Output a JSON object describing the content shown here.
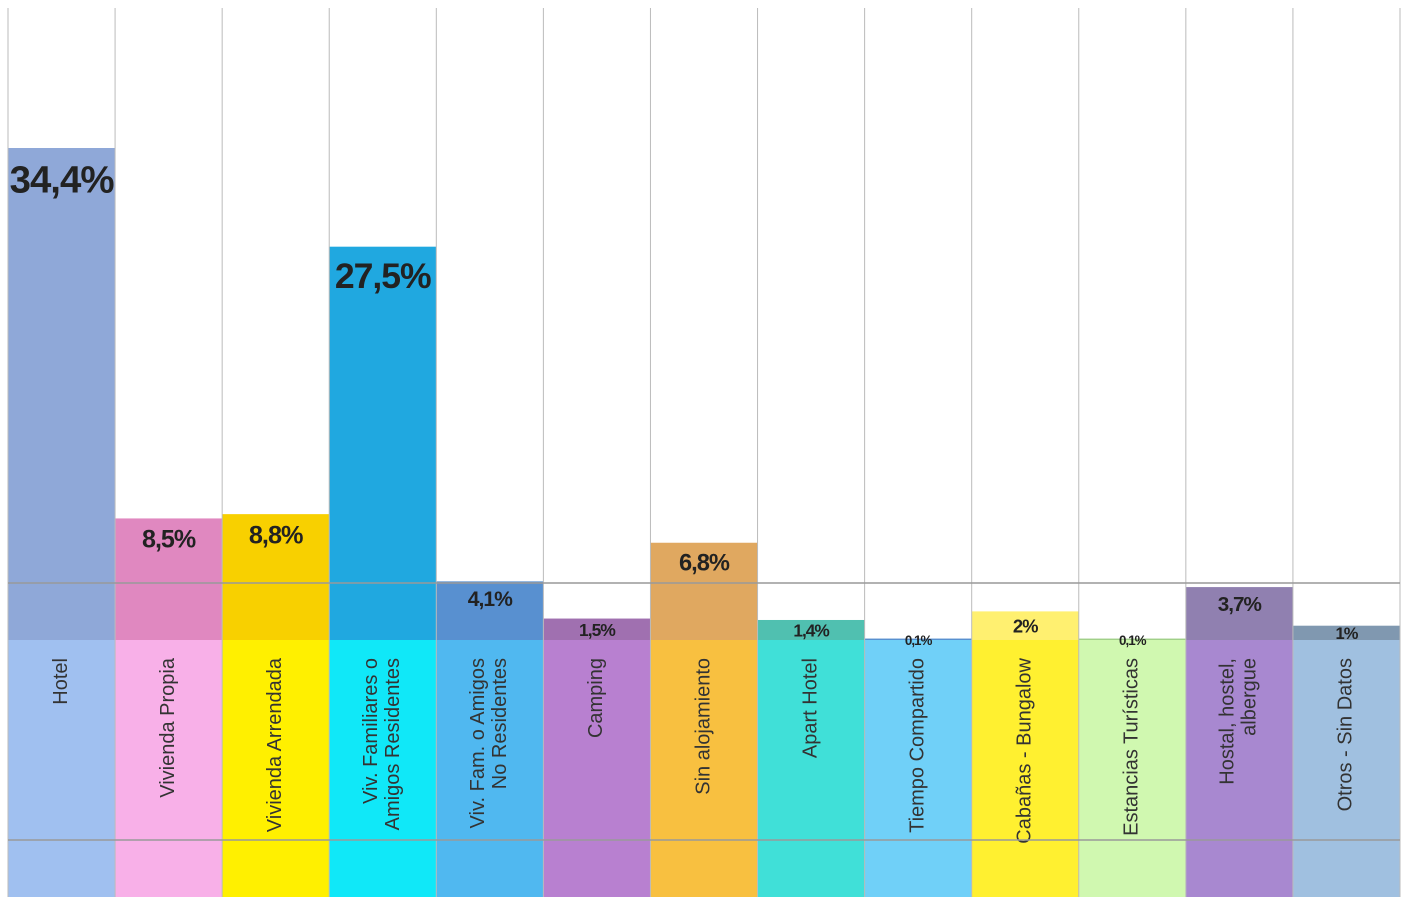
{
  "chart_data": {
    "type": "bar",
    "categories": [
      [
        "Hotel"
      ],
      [
        "Vivienda Propia"
      ],
      [
        "Vivienda Arrendada"
      ],
      [
        "Viv. Familiares o",
        "Amigos Residentes"
      ],
      [
        "Viv. Fam. o Amigos",
        "No Residentes"
      ],
      [
        "Camping"
      ],
      [
        "Sin alojamiento"
      ],
      [
        "Apart Hotel"
      ],
      [
        "Tiempo Compartido"
      ],
      [
        "Cabañas - Bungalow"
      ],
      [
        "Estancias Turísticas"
      ],
      [
        "Hostal, hostel,",
        "albergue"
      ],
      [
        "Otros - Sin Datos"
      ]
    ],
    "values": [
      34.4,
      8.5,
      8.8,
      27.5,
      4.1,
      1.5,
      6.8,
      1.4,
      0.1,
      2,
      0.1,
      3.7,
      1
    ],
    "value_labels": [
      "34,4%",
      "8,5%",
      "8,8%",
      "27,5%",
      "4,1%",
      "1,5%",
      "6,8%",
      "1,4%",
      "0,1%",
      "2%",
      "0,1%",
      "3,7%",
      "1%"
    ],
    "colors": [
      "#8fa8d8",
      "#e088c0",
      "#f8d000",
      "#20a8e0",
      "#5890d0",
      "#a070b0",
      "#e0a860",
      "#50c0b0",
      "#5890d0",
      "#fff070",
      "#a0d088",
      "#9080b0",
      "#8098b0"
    ],
    "label_colors": [
      "#a0c0f0",
      "#f8b0e8",
      "#fff000",
      "#10e8f8",
      "#50b8f0",
      "#b880d0",
      "#f8c040",
      "#40e0d8",
      "#70d0f8",
      "#fff030",
      "#d0f8b0",
      "#a888d0",
      "#a0c0e0"
    ]
  }
}
